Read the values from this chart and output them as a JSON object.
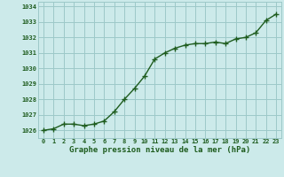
{
  "x": [
    0,
    1,
    2,
    3,
    4,
    5,
    6,
    7,
    8,
    9,
    10,
    11,
    12,
    13,
    14,
    15,
    16,
    17,
    18,
    19,
    20,
    21,
    22,
    23
  ],
  "y": [
    1026.0,
    1026.1,
    1026.4,
    1026.4,
    1026.3,
    1026.4,
    1026.6,
    1027.2,
    1028.0,
    1028.7,
    1029.5,
    1030.6,
    1031.0,
    1031.3,
    1031.5,
    1031.6,
    1031.6,
    1031.7,
    1031.6,
    1031.9,
    1032.0,
    1032.3,
    1033.1,
    1033.5
  ],
  "ylim": [
    1025.5,
    1034.3
  ],
  "yticks": [
    1026,
    1027,
    1028,
    1029,
    1030,
    1031,
    1032,
    1033,
    1034
  ],
  "xlabel": "Graphe pression niveau de la mer (hPa)",
  "line_color": "#1e5c1e",
  "marker": "+",
  "bg_color": "#cceaea",
  "grid_color": "#9dc8c8",
  "label_color": "#1e5c1e",
  "marker_size": 4,
  "line_width": 1.0
}
